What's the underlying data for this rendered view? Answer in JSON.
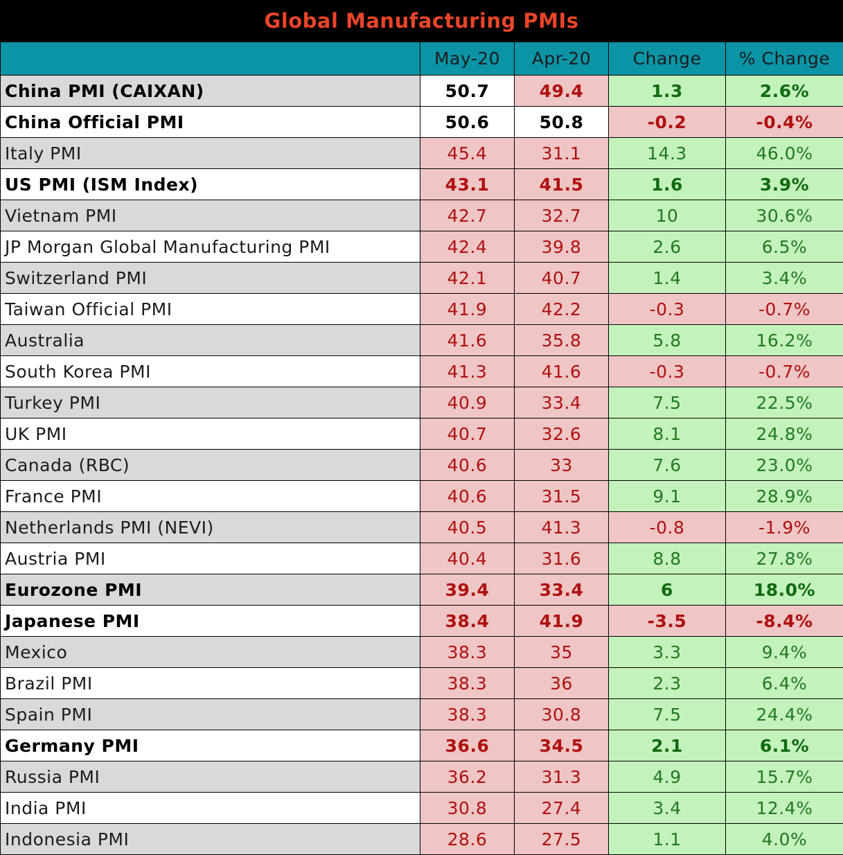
{
  "title": "Global Manufacturing PMIs",
  "columns": [
    "",
    "May-20",
    "Apr-20",
    "Change",
    "% Change"
  ],
  "colors": {
    "title_text": "#e8452a",
    "header_bg": "#0a94a6",
    "red_bg": "#efc5c5",
    "green_bg": "#c4f2bc"
  },
  "rows": [
    {
      "name": "China PMI (CAIXAN)",
      "may": "50.7",
      "apr": "49.4",
      "change": "1.3",
      "pct": "2.6%",
      "bold": true,
      "may_status": "neutral",
      "apr_status": "red",
      "chg_status": "green"
    },
    {
      "name": "China Official PMI",
      "may": "50.6",
      "apr": "50.8",
      "change": "-0.2",
      "pct": "-0.4%",
      "bold": true,
      "may_status": "neutral",
      "apr_status": "neutral",
      "chg_status": "red"
    },
    {
      "name": "Italy PMI",
      "may": "45.4",
      "apr": "31.1",
      "change": "14.3",
      "pct": "46.0%",
      "bold": false,
      "may_status": "red",
      "apr_status": "red",
      "chg_status": "green"
    },
    {
      "name": "US PMI (ISM Index)",
      "may": "43.1",
      "apr": "41.5",
      "change": "1.6",
      "pct": "3.9%",
      "bold": true,
      "may_status": "red",
      "apr_status": "red",
      "chg_status": "green"
    },
    {
      "name": "Vietnam PMI",
      "may": "42.7",
      "apr": "32.7",
      "change": "10",
      "pct": "30.6%",
      "bold": false,
      "may_status": "red",
      "apr_status": "red",
      "chg_status": "green"
    },
    {
      "name": "JP Morgan Global Manufacturing PMI",
      "may": "42.4",
      "apr": "39.8",
      "change": "2.6",
      "pct": "6.5%",
      "bold": false,
      "may_status": "red",
      "apr_status": "red",
      "chg_status": "green"
    },
    {
      "name": "Switzerland PMI",
      "may": "42.1",
      "apr": "40.7",
      "change": "1.4",
      "pct": "3.4%",
      "bold": false,
      "may_status": "red",
      "apr_status": "red",
      "chg_status": "green"
    },
    {
      "name": "Taiwan Official PMI",
      "may": "41.9",
      "apr": "42.2",
      "change": "-0.3",
      "pct": "-0.7%",
      "bold": false,
      "may_status": "red",
      "apr_status": "red",
      "chg_status": "red"
    },
    {
      "name": "Australia",
      "may": "41.6",
      "apr": "35.8",
      "change": "5.8",
      "pct": "16.2%",
      "bold": false,
      "may_status": "red",
      "apr_status": "red",
      "chg_status": "green"
    },
    {
      "name": "South Korea PMI",
      "may": "41.3",
      "apr": "41.6",
      "change": "-0.3",
      "pct": "-0.7%",
      "bold": false,
      "may_status": "red",
      "apr_status": "red",
      "chg_status": "red"
    },
    {
      "name": "Turkey PMI",
      "may": "40.9",
      "apr": "33.4",
      "change": "7.5",
      "pct": "22.5%",
      "bold": false,
      "may_status": "red",
      "apr_status": "red",
      "chg_status": "green"
    },
    {
      "name": "UK PMI",
      "may": "40.7",
      "apr": "32.6",
      "change": "8.1",
      "pct": "24.8%",
      "bold": false,
      "may_status": "red",
      "apr_status": "red",
      "chg_status": "green"
    },
    {
      "name": "Canada (RBC)",
      "may": "40.6",
      "apr": "33",
      "change": "7.6",
      "pct": "23.0%",
      "bold": false,
      "may_status": "red",
      "apr_status": "red",
      "chg_status": "green"
    },
    {
      "name": "France PMI",
      "may": "40.6",
      "apr": "31.5",
      "change": "9.1",
      "pct": "28.9%",
      "bold": false,
      "may_status": "red",
      "apr_status": "red",
      "chg_status": "green"
    },
    {
      "name": "Netherlands PMI (NEVI)",
      "may": "40.5",
      "apr": "41.3",
      "change": "-0.8",
      "pct": "-1.9%",
      "bold": false,
      "may_status": "red",
      "apr_status": "red",
      "chg_status": "red"
    },
    {
      "name": "Austria PMI",
      "may": "40.4",
      "apr": "31.6",
      "change": "8.8",
      "pct": "27.8%",
      "bold": false,
      "may_status": "red",
      "apr_status": "red",
      "chg_status": "green"
    },
    {
      "name": "Eurozone PMI",
      "may": "39.4",
      "apr": "33.4",
      "change": "6",
      "pct": "18.0%",
      "bold": true,
      "may_status": "red",
      "apr_status": "red",
      "chg_status": "green"
    },
    {
      "name": "Japanese PMI",
      "may": "38.4",
      "apr": "41.9",
      "change": "-3.5",
      "pct": "-8.4%",
      "bold": true,
      "may_status": "red",
      "apr_status": "red",
      "chg_status": "red"
    },
    {
      "name": "Mexico",
      "may": "38.3",
      "apr": "35",
      "change": "3.3",
      "pct": "9.4%",
      "bold": false,
      "may_status": "red",
      "apr_status": "red",
      "chg_status": "green"
    },
    {
      "name": "Brazil PMI",
      "may": "38.3",
      "apr": "36",
      "change": "2.3",
      "pct": "6.4%",
      "bold": false,
      "may_status": "red",
      "apr_status": "red",
      "chg_status": "green"
    },
    {
      "name": "Spain PMI",
      "may": "38.3",
      "apr": "30.8",
      "change": "7.5",
      "pct": "24.4%",
      "bold": false,
      "may_status": "red",
      "apr_status": "red",
      "chg_status": "green"
    },
    {
      "name": "Germany PMI",
      "may": "36.6",
      "apr": "34.5",
      "change": "2.1",
      "pct": "6.1%",
      "bold": true,
      "may_status": "red",
      "apr_status": "red",
      "chg_status": "green"
    },
    {
      "name": "Russia PMI",
      "may": "36.2",
      "apr": "31.3",
      "change": "4.9",
      "pct": "15.7%",
      "bold": false,
      "may_status": "red",
      "apr_status": "red",
      "chg_status": "green"
    },
    {
      "name": "India PMI",
      "may": "30.8",
      "apr": "27.4",
      "change": "3.4",
      "pct": "12.4%",
      "bold": false,
      "may_status": "red",
      "apr_status": "red",
      "chg_status": "green"
    },
    {
      "name": "Indonesia PMI",
      "may": "28.6",
      "apr": "27.5",
      "change": "1.1",
      "pct": "4.0%",
      "bold": false,
      "may_status": "red",
      "apr_status": "red",
      "chg_status": "green"
    }
  ]
}
